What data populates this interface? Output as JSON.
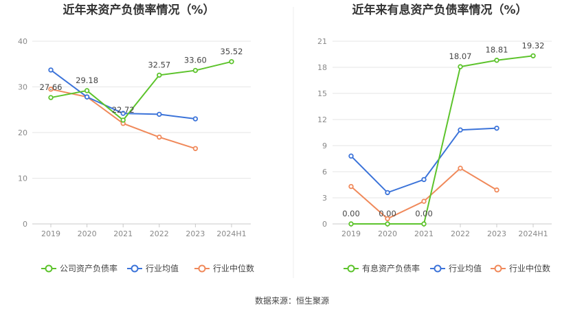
{
  "source_text": "数据来源：恒生聚源",
  "chart_data": [
    {
      "type": "line",
      "title": "近年来资产负债率情况（%）",
      "categories": [
        "2019",
        "2020",
        "2021",
        "2022",
        "2023",
        "2024H1"
      ],
      "ylim": [
        0,
        40
      ],
      "yticks": [
        0,
        10,
        20,
        30,
        40
      ],
      "grid": true,
      "legend_position": "bottom",
      "series": [
        {
          "name": "公司资产负债率",
          "color": "#5cc32b",
          "values": [
            27.66,
            29.18,
            22.72,
            32.57,
            33.6,
            35.52
          ],
          "labels": [
            "27.66",
            "29.18",
            "22.72",
            "32.57",
            "33.60",
            "35.52"
          ]
        },
        {
          "name": "行业均值",
          "color": "#3b73d9",
          "values": [
            33.7,
            27.8,
            24.2,
            24.0,
            23.0,
            null
          ]
        },
        {
          "name": "行业中位数",
          "color": "#f0895a",
          "values": [
            29.5,
            27.8,
            22.0,
            19.0,
            16.5,
            null
          ]
        }
      ]
    },
    {
      "type": "line",
      "title": "近年来有息资产负债率情况（%）",
      "categories": [
        "2019",
        "2020",
        "2021",
        "2022",
        "2023",
        "2024H1"
      ],
      "ylim": [
        0,
        21
      ],
      "yticks": [
        0,
        3,
        6,
        9,
        12,
        15,
        18,
        21
      ],
      "grid": true,
      "legend_position": "bottom",
      "series": [
        {
          "name": "有息资产负债率",
          "color": "#5cc32b",
          "values": [
            0.0,
            0.0,
            0.0,
            18.07,
            18.81,
            19.32
          ],
          "labels": [
            "0.00",
            "0.00",
            "0.00",
            "18.07",
            "18.81",
            "19.32"
          ]
        },
        {
          "name": "行业均值",
          "color": "#3b73d9",
          "values": [
            7.8,
            3.6,
            5.1,
            10.8,
            11.0,
            null
          ]
        },
        {
          "name": "行业中位数",
          "color": "#f0895a",
          "values": [
            4.3,
            0.6,
            2.6,
            6.4,
            3.9,
            null
          ]
        }
      ]
    }
  ]
}
